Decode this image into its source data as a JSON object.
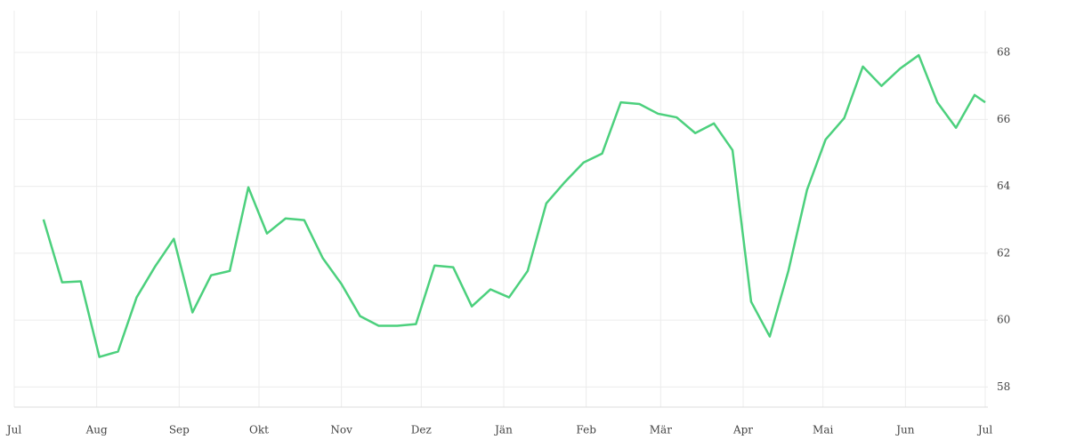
{
  "chart_data": {
    "type": "line",
    "x": [
      11,
      18,
      25,
      32,
      39,
      46,
      53,
      60,
      67,
      74,
      81,
      88,
      95,
      102,
      109,
      116,
      123,
      130,
      137,
      144,
      151,
      158,
      165,
      172,
      179,
      186,
      193,
      200,
      207,
      214,
      221,
      228,
      235,
      242,
      249,
      256,
      263,
      270,
      277,
      284,
      291,
      298,
      305,
      312,
      319,
      326,
      333,
      340,
      347,
      354,
      361,
      365
    ],
    "series": [
      {
        "color": "#4cd07d",
        "values": [
          63.01,
          61.13,
          61.16,
          58.9,
          59.06,
          60.68,
          61.61,
          62.43,
          60.23,
          61.34,
          61.47,
          63.97,
          62.59,
          63.04,
          62.99,
          61.85,
          61.08,
          60.12,
          59.83,
          59.83,
          59.88,
          61.63,
          61.58,
          60.41,
          60.92,
          60.68,
          61.47,
          63.49,
          64.13,
          64.71,
          64.98,
          66.51,
          66.46,
          66.17,
          66.06,
          65.59,
          65.88,
          65.08,
          60.55,
          59.51,
          61.47,
          63.89,
          65.4,
          66.04,
          67.58,
          67.0,
          67.52,
          67.92,
          66.51,
          65.75,
          66.73,
          66.51
        ]
      }
    ],
    "xlim": [
      0,
      366
    ],
    "xticks": [
      {
        "value": 0,
        "label": "Jul"
      },
      {
        "value": 31,
        "label": "Aug"
      },
      {
        "value": 62,
        "label": "Sep"
      },
      {
        "value": 92,
        "label": "Okt"
      },
      {
        "value": 123,
        "label": "Nov"
      },
      {
        "value": 153,
        "label": "Dez"
      },
      {
        "value": 184,
        "label": "Jän"
      },
      {
        "value": 215,
        "label": "Feb"
      },
      {
        "value": 243,
        "label": "Mär"
      },
      {
        "value": 274,
        "label": "Apr"
      },
      {
        "value": 304,
        "label": "Mai"
      },
      {
        "value": 335,
        "label": "Jun"
      },
      {
        "value": 365,
        "label": "Jul"
      }
    ],
    "ylim": [
      57.4,
      69.25
    ],
    "yticks": [
      58,
      60,
      62,
      64,
      66,
      68
    ],
    "grid": true
  }
}
